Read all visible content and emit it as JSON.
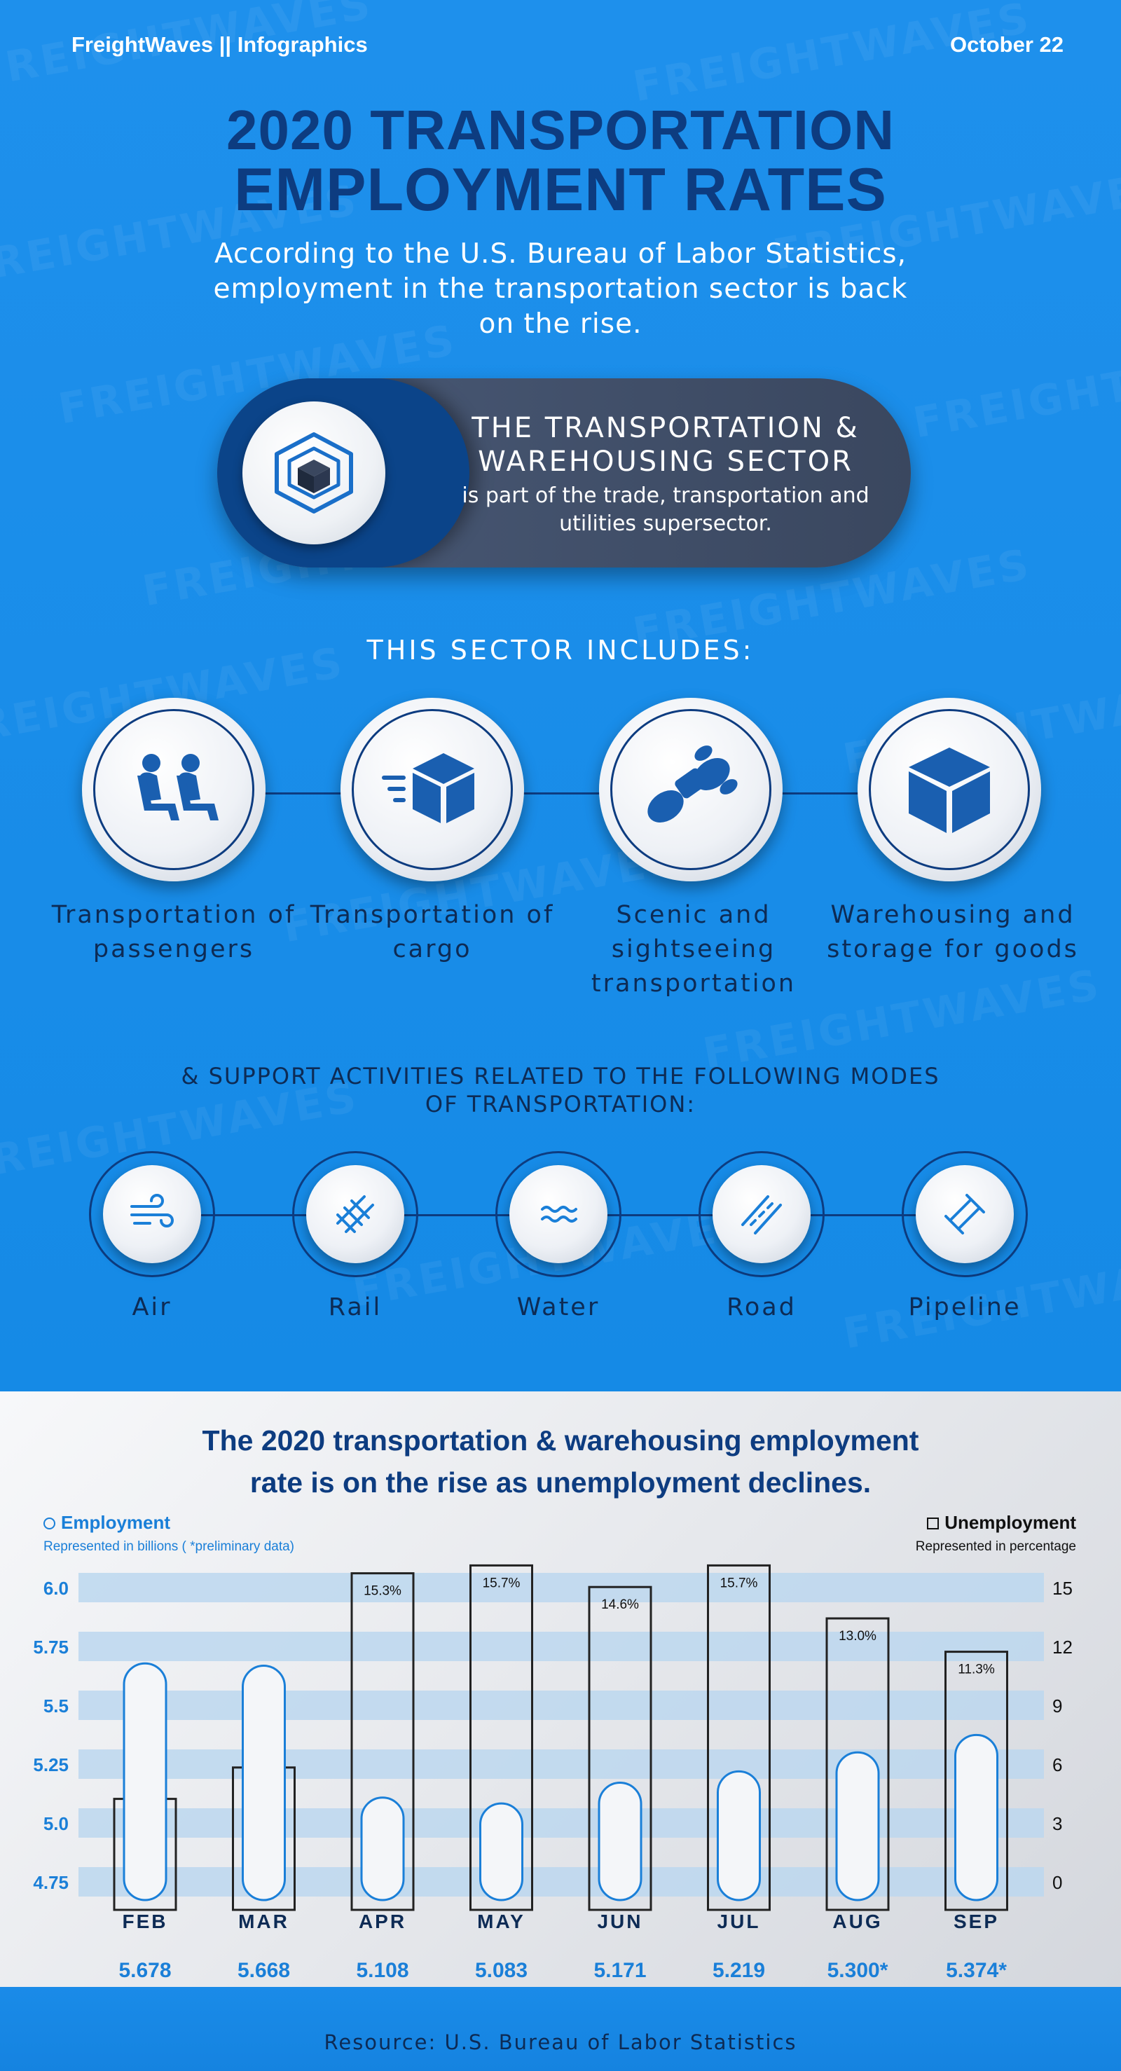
{
  "header": {
    "brand": "FreightWaves || Infographics",
    "date": "October 22"
  },
  "title": {
    "line1": "2020 TRANSPORTATION",
    "line2": "EMPLOYMENT RATES"
  },
  "subtitle": "According to the U.S. Bureau of Labor Statistics, employment in the transportation sector is back on the rise.",
  "sector_pill": {
    "heading1": "THE TRANSPORTATION &",
    "heading2": "WAREHOUSING SECTOR",
    "body": "is part of the trade, transportation and utilities supersector.",
    "icon": "warehouse-cube-icon"
  },
  "includes": {
    "heading": "THIS SECTOR INCLUDES:",
    "items": [
      {
        "label": "Transportation of passengers",
        "icon": "passenger-seats-icon"
      },
      {
        "label": "Transportation of cargo",
        "icon": "moving-box-icon"
      },
      {
        "label": "Scenic and sightseeing transportation",
        "icon": "binoculars-icon"
      },
      {
        "label": "Warehousing and storage for goods",
        "icon": "cube-icon"
      }
    ]
  },
  "support": {
    "heading": "& SUPPORT ACTIVITIES RELATED TO THE FOLLOWING MODES OF TRANSPORTATION:",
    "modes": [
      {
        "label": "Air",
        "icon": "wind-icon"
      },
      {
        "label": "Rail",
        "icon": "railroad-icon"
      },
      {
        "label": "Water",
        "icon": "waves-icon"
      },
      {
        "label": "Road",
        "icon": "road-icon"
      },
      {
        "label": "Pipeline",
        "icon": "pipeline-icon"
      }
    ]
  },
  "chart_data": {
    "type": "bar",
    "title": "The 2020 transportation & warehousing employment rate is on the rise as unemployment declines.",
    "categories": [
      "FEB",
      "MAR",
      "APR",
      "MAY",
      "JUN",
      "JUL",
      "AUG",
      "SEP"
    ],
    "series": [
      {
        "name": "Employment",
        "axis": "left",
        "values": [
          5.678,
          5.668,
          5.108,
          5.083,
          5.171,
          5.219,
          5.3,
          5.374
        ],
        "value_labels": [
          "5.678",
          "5.668",
          "5.108",
          "5.083",
          "5.171",
          "5.219",
          "5.300*",
          "5.374*"
        ],
        "color": "#1a7fd8"
      },
      {
        "name": "Unemployment",
        "axis": "right",
        "values": [
          3.8,
          5.4,
          15.3,
          15.7,
          14.6,
          15.7,
          13.0,
          11.3
        ],
        "value_labels": [
          "3.8%",
          "5.4%",
          "15.3%",
          "15.7%",
          "14.6%",
          "15.7%",
          "13.0%",
          "11.3%"
        ],
        "color": "#111111"
      }
    ],
    "left_axis": {
      "note": "Represented in billions ( *preliminary data)",
      "ticks": [
        "6.0",
        "5.75",
        "5.5",
        "5.25",
        "5.0",
        "4.75"
      ],
      "tick_values": [
        6.0,
        5.75,
        5.5,
        5.25,
        5.0,
        4.75
      ],
      "ylim": [
        4.75,
        6.0
      ]
    },
    "right_axis": {
      "note": "Represented in percentage",
      "ticks": [
        "15",
        "12",
        "9",
        "6",
        "3",
        "0"
      ],
      "tick_values": [
        15,
        12,
        9,
        6,
        3,
        0
      ],
      "ylim": [
        0,
        15
      ]
    },
    "grid": true,
    "legend": [
      "top-left",
      "top-right"
    ]
  },
  "footer": {
    "source": "Resource: U.S. Bureau of Labor Statistics"
  },
  "colors": {
    "background_blue": "#1a8be8",
    "title_navy": "#0d3c80",
    "accent_blue": "#1a7fd8",
    "pill_gray": "#3a475f"
  }
}
